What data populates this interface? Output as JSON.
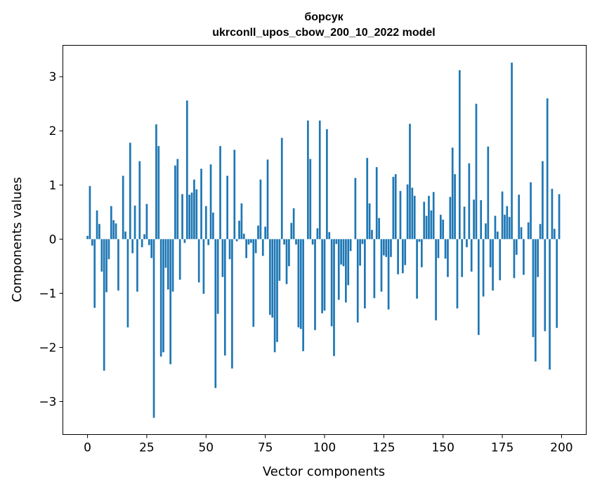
{
  "chart_data": {
    "type": "bar",
    "title": [
      "борсук",
      "ukrconll_upos_cbow_200_10_2022 model"
    ],
    "xlabel": "Vector components",
    "ylabel": "Components values",
    "xlim": [
      -10.4,
      210.4
    ],
    "ylim": [
      -3.61,
      3.58
    ],
    "xticks": [
      0,
      25,
      50,
      75,
      100,
      125,
      150,
      175,
      200
    ],
    "yticks": [
      -3,
      -2,
      -1,
      0,
      1,
      2,
      3
    ],
    "xtick_labels": [
      "0",
      "25",
      "50",
      "75",
      "100",
      "125",
      "150",
      "175",
      "200"
    ],
    "ytick_labels": [
      "−3",
      "−2",
      "−1",
      "0",
      "1",
      "2",
      "3"
    ],
    "grid": false,
    "bar_color": "#1f77b4",
    "values": [
      0.06,
      0.98,
      -0.12,
      -1.27,
      0.53,
      0.28,
      -0.6,
      -2.43,
      -0.98,
      -0.37,
      0.61,
      0.35,
      0.29,
      -0.95,
      0.0,
      1.17,
      0.14,
      -1.63,
      1.78,
      -0.26,
      0.62,
      -0.97,
      1.44,
      -0.15,
      0.09,
      0.65,
      -0.11,
      -0.35,
      -3.3,
      2.12,
      1.72,
      -2.17,
      -2.09,
      -0.53,
      -0.93,
      -2.31,
      -0.97,
      1.36,
      1.48,
      -0.75,
      0.83,
      -0.07,
      2.56,
      0.82,
      0.86,
      1.1,
      0.92,
      -0.8,
      1.3,
      -1.01,
      0.61,
      -0.11,
      1.38,
      0.49,
      -2.75,
      -1.38,
      1.72,
      -0.7,
      -2.15,
      1.17,
      -0.37,
      -2.39,
      1.65,
      -0.04,
      0.34,
      0.66,
      0.1,
      -0.35,
      -0.1,
      -0.07,
      -1.62,
      -0.26,
      0.25,
      1.1,
      -0.31,
      0.23,
      1.47,
      -1.4,
      -1.45,
      -2.09,
      -1.9,
      -0.77,
      1.87,
      -0.1,
      -0.83,
      -0.5,
      0.3,
      0.57,
      -0.1,
      -1.63,
      -1.66,
      -2.07,
      0.0,
      2.19,
      1.48,
      -0.1,
      -1.68,
      0.2,
      2.19,
      -1.37,
      -1.32,
      2.03,
      0.13,
      -1.61,
      -2.16,
      -0.09,
      -1.12,
      -0.47,
      -0.5,
      -1.17,
      -0.85,
      -0.22,
      0.0,
      1.13,
      -1.54,
      -0.49,
      -0.09,
      -1.28,
      1.5,
      0.66,
      0.17,
      -1.09,
      1.33,
      0.39,
      -0.97,
      -0.3,
      -0.33,
      -1.3,
      -0.33,
      1.15,
      1.2,
      -0.65,
      0.89,
      -0.63,
      -0.48,
      1.01,
      2.13,
      0.95,
      0.8,
      -1.1,
      -0.05,
      -0.52,
      0.69,
      0.43,
      0.8,
      0.53,
      0.87,
      -1.5,
      -0.35,
      0.45,
      0.36,
      -0.36,
      -0.7,
      0.78,
      1.69,
      1.2,
      -1.28,
      3.12,
      -0.7,
      0.6,
      -0.15,
      1.4,
      -0.6,
      0.73,
      2.5,
      -1.77,
      0.72,
      -1.06,
      0.29,
      1.71,
      -0.52,
      -0.95,
      0.43,
      0.14,
      -0.76,
      0.88,
      0.45,
      0.61,
      0.41,
      3.26,
      -0.72,
      -0.29,
      0.82,
      0.22,
      -0.66,
      0.0,
      0.31,
      1.05,
      -1.81,
      -2.26,
      -0.7,
      0.28,
      1.44,
      -1.7,
      2.6,
      -2.41,
      0.93,
      0.19,
      -1.64,
      0.83
    ]
  }
}
